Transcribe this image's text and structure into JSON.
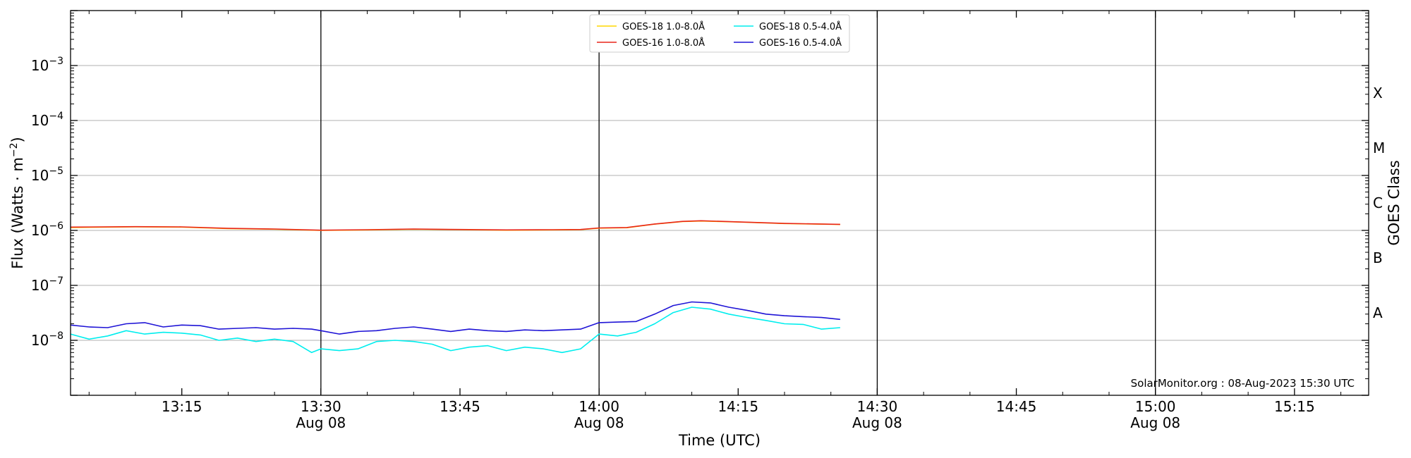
{
  "chart_data": {
    "type": "line",
    "title": "",
    "xlabel": "Time (UTC)",
    "ylabel": "Flux (Watts · m",
    "ylabel_sup": "−2",
    "ylabel_end": ")",
    "right_ylabel": "GOES Class",
    "yscale": "log",
    "ylim": [
      1e-09,
      0.01
    ],
    "xlim": [
      "13:03",
      "15:23"
    ],
    "grid": "horizontal at decades",
    "legend_position": "top-center",
    "credit": "SolarMonitor.org : 08-Aug-2023 15:30 UTC",
    "x_ticks": [
      {
        "time": "13:15",
        "label": "13:15",
        "date": ""
      },
      {
        "time": "13:30",
        "label": "13:30",
        "date": "Aug 08"
      },
      {
        "time": "13:45",
        "label": "13:45",
        "date": ""
      },
      {
        "time": "14:00",
        "label": "14:00",
        "date": "Aug 08"
      },
      {
        "time": "14:15",
        "label": "14:15",
        "date": ""
      },
      {
        "time": "14:30",
        "label": "14:30",
        "date": "Aug 08"
      },
      {
        "time": "14:45",
        "label": "14:45",
        "date": ""
      },
      {
        "time": "15:00",
        "label": "15:00",
        "date": "Aug 08"
      },
      {
        "time": "15:15",
        "label": "15:15",
        "date": ""
      }
    ],
    "vertical_lines": [
      "13:30",
      "14:00",
      "14:30",
      "15:00"
    ],
    "y_ticks": [
      {
        "value": 1e-08,
        "base": "10",
        "exp": "−8"
      },
      {
        "value": 1e-07,
        "base": "10",
        "exp": "−7"
      },
      {
        "value": 1e-06,
        "base": "10",
        "exp": "−6"
      },
      {
        "value": 1e-05,
        "base": "10",
        "exp": "−5"
      },
      {
        "value": 0.0001,
        "base": "10",
        "exp": "−4"
      },
      {
        "value": 0.001,
        "base": "10",
        "exp": "−3"
      }
    ],
    "goes_classes": [
      {
        "label": "A",
        "value": 3.16e-08
      },
      {
        "label": "B",
        "value": 3.16e-07
      },
      {
        "label": "C",
        "value": 3.16e-06
      },
      {
        "label": "M",
        "value": 3.16e-05
      },
      {
        "label": "X",
        "value": 0.000316
      }
    ],
    "series": [
      {
        "name": "GOES-18 1.0-8.0Å",
        "color": "#ffd700",
        "x": [
          "13:03",
          "13:10",
          "13:15",
          "13:20",
          "13:25",
          "13:30",
          "13:35",
          "13:40",
          "13:45",
          "13:50",
          "13:55",
          "13:58",
          "14:00",
          "14:03",
          "14:06",
          "14:09",
          "14:11",
          "14:15",
          "14:20",
          "14:26"
        ],
        "y": [
          1.13e-06,
          1.16e-06,
          1.15e-06,
          1.08e-06,
          1.05e-06,
          1e-06,
          1.02e-06,
          1.05e-06,
          1.03e-06,
          1.01e-06,
          1.02e-06,
          1.03e-06,
          1.1e-06,
          1.12e-06,
          1.3e-06,
          1.45e-06,
          1.48e-06,
          1.42e-06,
          1.33e-06,
          1.28e-06
        ]
      },
      {
        "name": "GOES-16 1.0-8.0Å",
        "color": "#e8251a",
        "x": [
          "13:03",
          "13:10",
          "13:15",
          "13:20",
          "13:25",
          "13:30",
          "13:35",
          "13:40",
          "13:45",
          "13:50",
          "13:55",
          "13:58",
          "14:00",
          "14:03",
          "14:06",
          "14:09",
          "14:11",
          "14:15",
          "14:20",
          "14:26"
        ],
        "y": [
          1.15e-06,
          1.17e-06,
          1.16e-06,
          1.09e-06,
          1.06e-06,
          1.01e-06,
          1.03e-06,
          1.06e-06,
          1.04e-06,
          1.02e-06,
          1.03e-06,
          1.04e-06,
          1.11e-06,
          1.13e-06,
          1.31e-06,
          1.46e-06,
          1.5e-06,
          1.43e-06,
          1.34e-06,
          1.29e-06
        ]
      },
      {
        "name": "GOES-18 0.5-4.0Å",
        "color": "#00eeee",
        "x": [
          "13:03",
          "13:05",
          "13:07",
          "13:09",
          "13:11",
          "13:13",
          "13:15",
          "13:17",
          "13:19",
          "13:21",
          "13:23",
          "13:25",
          "13:27",
          "13:29",
          "13:30",
          "13:32",
          "13:34",
          "13:36",
          "13:38",
          "13:40",
          "13:42",
          "13:44",
          "13:46",
          "13:48",
          "13:50",
          "13:52",
          "13:54",
          "13:56",
          "13:58",
          "14:00",
          "14:02",
          "14:04",
          "14:06",
          "14:08",
          "14:10",
          "14:12",
          "14:14",
          "14:16",
          "14:18",
          "14:20",
          "14:22",
          "14:24",
          "14:26"
        ],
        "y": [
          1.3e-08,
          1.05e-08,
          1.2e-08,
          1.5e-08,
          1.3e-08,
          1.4e-08,
          1.35e-08,
          1.25e-08,
          1e-08,
          1.1e-08,
          9.5e-09,
          1.05e-08,
          9.5e-09,
          6e-09,
          7e-09,
          6.5e-09,
          7e-09,
          9.5e-09,
          1e-08,
          9.5e-09,
          8.5e-09,
          6.5e-09,
          7.5e-09,
          8e-09,
          6.5e-09,
          7.5e-09,
          7e-09,
          6e-09,
          7e-09,
          1.3e-08,
          1.2e-08,
          1.4e-08,
          2e-08,
          3.2e-08,
          4e-08,
          3.7e-08,
          3e-08,
          2.6e-08,
          2.3e-08,
          2e-08,
          1.95e-08,
          1.6e-08,
          1.7e-08
        ]
      },
      {
        "name": "GOES-16 0.5-4.0Å",
        "color": "#1f14d6",
        "x": [
          "13:03",
          "13:05",
          "13:07",
          "13:09",
          "13:11",
          "13:13",
          "13:15",
          "13:17",
          "13:19",
          "13:21",
          "13:23",
          "13:25",
          "13:27",
          "13:29",
          "13:30",
          "13:32",
          "13:34",
          "13:36",
          "13:38",
          "13:40",
          "13:42",
          "13:44",
          "13:46",
          "13:48",
          "13:50",
          "13:52",
          "13:54",
          "13:56",
          "13:58",
          "14:00",
          "14:02",
          "14:04",
          "14:06",
          "14:08",
          "14:10",
          "14:12",
          "14:14",
          "14:16",
          "14:18",
          "14:20",
          "14:22",
          "14:24",
          "14:26"
        ],
        "y": [
          1.9e-08,
          1.75e-08,
          1.7e-08,
          2e-08,
          2.1e-08,
          1.75e-08,
          1.9e-08,
          1.85e-08,
          1.6e-08,
          1.65e-08,
          1.7e-08,
          1.6e-08,
          1.65e-08,
          1.6e-08,
          1.5e-08,
          1.3e-08,
          1.45e-08,
          1.5e-08,
          1.65e-08,
          1.75e-08,
          1.6e-08,
          1.45e-08,
          1.6e-08,
          1.5e-08,
          1.45e-08,
          1.55e-08,
          1.5e-08,
          1.55e-08,
          1.6e-08,
          2.1e-08,
          2.15e-08,
          2.2e-08,
          3e-08,
          4.3e-08,
          5e-08,
          4.8e-08,
          4e-08,
          3.5e-08,
          3e-08,
          2.8e-08,
          2.7e-08,
          2.6e-08,
          2.4e-08
        ]
      }
    ]
  }
}
